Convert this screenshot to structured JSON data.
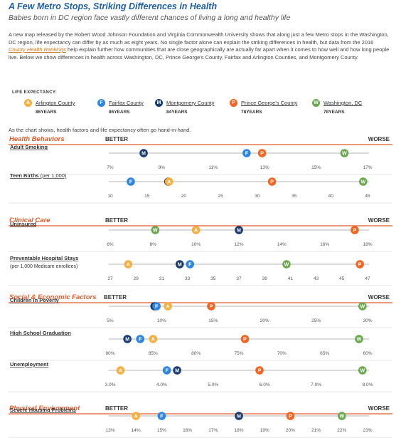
{
  "header": {
    "title": "A Few Metro Stops, Striking Differences in Health",
    "subtitle": "Babies born in DC region face vastly different chances of living a long and healthy life",
    "intro_before": "A new map released by the Robert Wood Johnson Foundation and Virginia Commonwealth University shows that along just a few Metro stops in the Washington, DC region, life expectancy can differ by as much as eight years. No single factor alone can explain the striking differences in health, but data from the 2016 ",
    "intro_link": "County Health Rankings",
    "intro_after": " help explain further how communities that are close geographically are actually far apart when it comes to how well and how long people live. Below we show differences in health across Washington, DC, Prince George's County, Fairfax and Arlington Counties, and Montgomery County.",
    "note": "As the chart shows, health factors and life expectancy often go hand-in-hand."
  },
  "legend": {
    "title": "LIFE EXPECTANCY:",
    "items": [
      {
        "key": "A",
        "name": "Arlington County",
        "years": "86YEARS",
        "color": "#f5b041"
      },
      {
        "key": "F",
        "name": "Fairfax County",
        "years": "86YEARS",
        "color": "#2e86de"
      },
      {
        "key": "M",
        "name": "Montgomery County",
        "years": "84YEARS",
        "color": "#1b3b6f"
      },
      {
        "key": "P",
        "name": "Prince George's County",
        "years": "78YEARS",
        "color": "#f26522"
      },
      {
        "key": "W",
        "name": "Washington, DC",
        "years": "78YEARS",
        "color": "#6aa84f"
      }
    ]
  },
  "chart_data": {
    "type": "scatter",
    "better_label": "BETTER",
    "worse_label": "WORSE",
    "sections": [
      {
        "title": "Health Behaviors",
        "metrics": [
          {
            "label": "Adult Smoking",
            "sublabel": "",
            "ticks": [
              "7%",
              "9%",
              "11%",
              "13%",
              "15%",
              "17%"
            ],
            "domain": [
              7,
              17
            ],
            "values": {
              "M": 8.3,
              "F": 12.3,
              "P": 12.9,
              "W": 16.1,
              "A": null
            }
          },
          {
            "label": "Teen Births",
            "sublabel": "(per 1,000)",
            "ticks": [
              "10",
              "15",
              "20",
              "25",
              "30",
              "35",
              "40",
              "45"
            ],
            "domain": [
              10,
              45
            ],
            "values": {
              "F": 12.8,
              "M": 17.9,
              "A": 18.0,
              "P": 32.0,
              "W": 44.4
            }
          }
        ]
      },
      {
        "title": "Clinical Care",
        "metrics": [
          {
            "label": "Uninsured",
            "sublabel": "",
            "ticks": [
              "6%",
              "8%",
              "10%",
              "12%",
              "14%",
              "16%",
              "18%"
            ],
            "domain": [
              6,
              18
            ],
            "values": {
              "W": 8.1,
              "A": 10.0,
              "M": 12.0,
              "P": 17.4,
              "F": null
            }
          },
          {
            "label": "Preventable Hospital Stays",
            "sublabel": "(per 1,000 Medicare enrollees)",
            "ticks": [
              "27",
              "29",
              "31",
              "33",
              "35",
              "37",
              "39",
              "41",
              "43",
              "45",
              "47"
            ],
            "domain": [
              27,
              47
            ],
            "values": {
              "A": 28.4,
              "M": 32.4,
              "F": 33.2,
              "W": 40.7,
              "P": 46.4
            }
          }
        ]
      },
      {
        "title": "Social & Economic Factors",
        "metrics": [
          {
            "label": "Children in Poverty",
            "sublabel": "",
            "ticks": [
              "5%",
              "10%",
              "15%",
              "20%",
              "25%",
              "30%"
            ],
            "domain": [
              5,
              30
            ],
            "values": {
              "M": 9.3,
              "F": 9.5,
              "A": 10.6,
              "P": 14.8,
              "W": 29.5
            }
          },
          {
            "label": "High School Graduation",
            "sublabel": "",
            "ticks": [
              "90%",
              "85%",
              "80%",
              "75%",
              "70%",
              "65%",
              "60%"
            ],
            "domain": [
              90,
              60
            ],
            "values": {
              "M": 88.0,
              "F": 86.5,
              "A": 85.0,
              "P": 74.3,
              "W": 61.0
            }
          },
          {
            "label": "Unemployment",
            "sublabel": "",
            "ticks": [
              "3.0%",
              "4.0%",
              "5.0%",
              "6.0%",
              "7.0%",
              "8.0%"
            ],
            "domain": [
              3,
              8
            ],
            "values": {
              "A": 3.2,
              "F": 4.1,
              "M": 4.3,
              "P": 5.9,
              "W": 7.9
            }
          }
        ]
      },
      {
        "title": "Physical Environment",
        "metrics": [
          {
            "label": "Severe Housing Problems",
            "sublabel": "",
            "ticks": [
              "13%",
              "14%",
              "15%",
              "16%",
              "17%",
              "18%",
              "19%",
              "20%",
              "21%",
              "22%",
              "23%"
            ],
            "domain": [
              13,
              23
            ],
            "values": {
              "A": 14.0,
              "F": 15.0,
              "M": 18.0,
              "P": 20.0,
              "W": 22.0
            }
          }
        ]
      }
    ]
  }
}
